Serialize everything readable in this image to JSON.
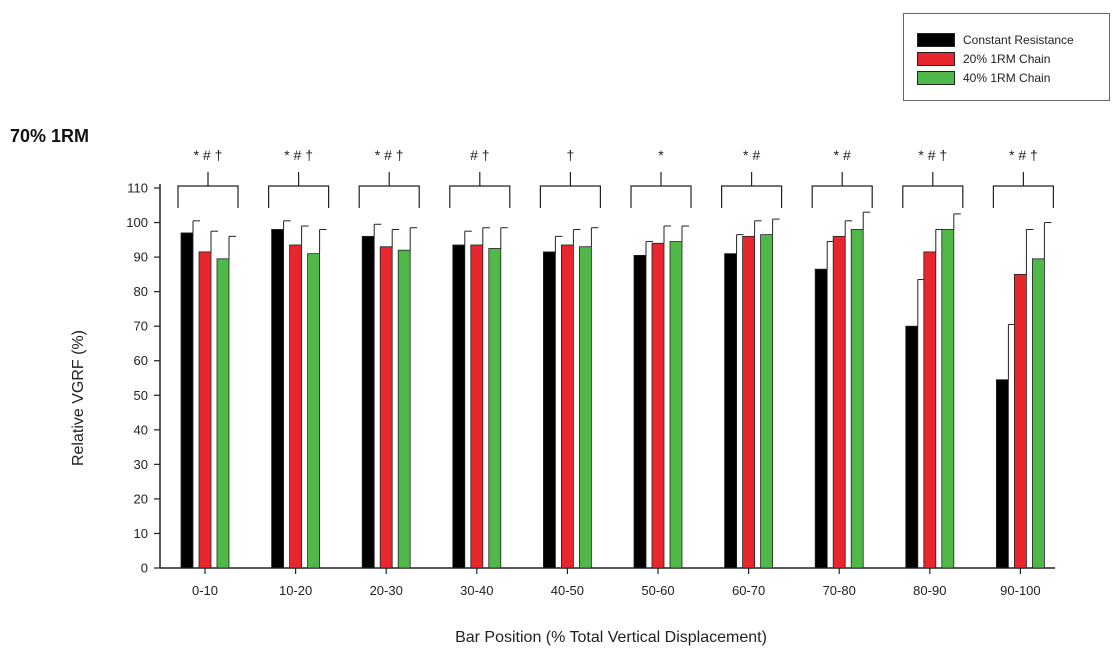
{
  "chart_data": {
    "type": "bar",
    "title": "70% 1RM",
    "xlabel": "Bar Position (% Total Vertical Displacement)",
    "ylabel": "Relative VGRF (%)",
    "ylim": [
      0,
      110
    ],
    "yticks": [
      0,
      10,
      20,
      30,
      40,
      50,
      60,
      70,
      80,
      90,
      100,
      110
    ],
    "categories": [
      "0-10",
      "10-20",
      "20-30",
      "30-40",
      "40-50",
      "50-60",
      "60-70",
      "70-80",
      "80-90",
      "90-100"
    ],
    "series": [
      {
        "name": "Constant Resistance",
        "color": "#000000",
        "values": [
          97,
          98,
          96,
          93.5,
          91.5,
          90.5,
          91,
          86.5,
          70,
          54.5
        ],
        "error": [
          3.5,
          2.5,
          3.5,
          4,
          4.5,
          4,
          5.5,
          8,
          13.5,
          16
        ]
      },
      {
        "name": "20% 1RM Chain",
        "color": "#e8262d",
        "values": [
          91.5,
          93.5,
          93,
          93.5,
          93.5,
          94,
          96,
          96,
          91.5,
          85
        ],
        "error": [
          6,
          5.5,
          5,
          5,
          4.5,
          5,
          4.5,
          4.5,
          6.5,
          13
        ]
      },
      {
        "name": "40% 1RM Chain",
        "color": "#50b848",
        "values": [
          89.5,
          91,
          92,
          92.5,
          93,
          94.5,
          96.5,
          98,
          98,
          89.5
        ],
        "error": [
          6.5,
          7,
          6.5,
          6,
          5.5,
          4.5,
          4.5,
          5,
          4.5,
          10.5
        ]
      }
    ],
    "annotations": [
      "* # †",
      "* # †",
      "* # †",
      "# †",
      "†",
      "*",
      "* #",
      "* #",
      "* # †",
      "* # †"
    ],
    "legend_position": "top-right",
    "grid": false
  }
}
